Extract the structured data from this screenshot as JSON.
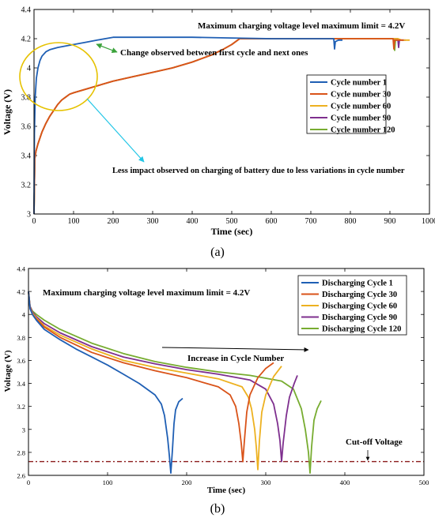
{
  "chart_data": [
    {
      "id": "a",
      "type": "line",
      "panel_label": "(a)",
      "xlabel": "Time (sec)",
      "ylabel": "Voltage (V)",
      "xlim": [
        0,
        1000
      ],
      "ylim": [
        3,
        4.4
      ],
      "xticks": [
        0,
        100,
        200,
        300,
        400,
        500,
        600,
        700,
        800,
        900,
        1000
      ],
      "yticks": [
        3,
        3.2,
        3.4,
        3.6,
        3.8,
        4,
        4.2,
        4.4
      ],
      "grid": false,
      "legend_position": "middle-right",
      "annotations": [
        "Maximum charging voltage level maximum limit = 4.2V",
        "Change observed between first cycle and next ones",
        "Less impact observed on charging of battery due to less variations in cycle number"
      ],
      "series": [
        {
          "name": "Cycle number 1",
          "color": "#1f5fb4",
          "x": [
            0,
            1,
            3,
            6,
            10,
            15,
            20,
            30,
            40,
            60,
            80,
            100,
            130,
            160,
            190,
            200,
            300,
            400,
            500,
            600,
            700,
            750,
            758,
            760,
            762,
            770,
            780
          ],
          "y": [
            3.0,
            3.55,
            3.8,
            3.93,
            4.0,
            4.05,
            4.08,
            4.11,
            4.125,
            4.14,
            4.15,
            4.16,
            4.175,
            4.19,
            4.205,
            4.21,
            4.21,
            4.21,
            4.205,
            4.2,
            4.2,
            4.2,
            4.2,
            4.13,
            4.18,
            4.19,
            4.19
          ]
        },
        {
          "name": "Cycle number 30",
          "color": "#d95319",
          "x": [
            0,
            2,
            5,
            10,
            20,
            30,
            40,
            50,
            60,
            70,
            80,
            90,
            100,
            150,
            200,
            250,
            300,
            350,
            400,
            450,
            480,
            500,
            520,
            600,
            700,
            800,
            900,
            908,
            910,
            912,
            920,
            935
          ],
          "y": [
            3.0,
            3.38,
            3.43,
            3.48,
            3.56,
            3.62,
            3.67,
            3.71,
            3.75,
            3.78,
            3.8,
            3.82,
            3.83,
            3.87,
            3.91,
            3.94,
            3.97,
            4.0,
            4.04,
            4.09,
            4.13,
            4.16,
            4.2,
            4.2,
            4.2,
            4.2,
            4.2,
            4.2,
            4.13,
            4.19,
            4.19,
            4.19
          ]
        },
        {
          "name": "Cycle number 60",
          "color": "#edb120",
          "x": [
            0,
            2,
            5,
            10,
            20,
            30,
            40,
            50,
            60,
            70,
            80,
            90,
            100,
            150,
            200,
            250,
            300,
            350,
            400,
            450,
            480,
            500,
            520,
            600,
            700,
            800,
            900,
            920,
            930,
            940,
            950
          ],
          "y": [
            3.0,
            3.38,
            3.43,
            3.48,
            3.56,
            3.62,
            3.67,
            3.71,
            3.75,
            3.78,
            3.8,
            3.82,
            3.83,
            3.87,
            3.91,
            3.94,
            3.97,
            4.0,
            4.04,
            4.09,
            4.13,
            4.16,
            4.2,
            4.2,
            4.2,
            4.2,
            4.2,
            4.2,
            4.19,
            4.19,
            4.19
          ]
        },
        {
          "name": "Cycle number 90",
          "color": "#7e2f8e",
          "x": [
            0,
            2,
            5,
            10,
            20,
            30,
            40,
            50,
            60,
            70,
            80,
            90,
            100,
            150,
            200,
            250,
            300,
            350,
            400,
            450,
            480,
            500,
            520,
            600,
            700,
            800,
            900,
            920,
            922,
            924,
            930,
            940
          ],
          "y": [
            3.0,
            3.38,
            3.43,
            3.48,
            3.56,
            3.62,
            3.67,
            3.71,
            3.75,
            3.78,
            3.8,
            3.82,
            3.83,
            3.87,
            3.91,
            3.94,
            3.97,
            4.0,
            4.04,
            4.09,
            4.13,
            4.16,
            4.2,
            4.2,
            4.2,
            4.2,
            4.2,
            4.2,
            4.14,
            4.19,
            4.19,
            4.19
          ]
        },
        {
          "name": "Cycle number 120",
          "color": "#77ac30",
          "x": [
            0,
            2,
            5,
            10,
            20,
            30,
            40,
            50,
            60,
            70,
            80,
            90,
            100,
            150,
            200,
            250,
            300,
            350,
            400,
            450,
            480,
            500,
            520,
            600,
            700,
            800,
            900,
            910,
            912,
            914,
            920
          ],
          "y": [
            3.0,
            3.38,
            3.43,
            3.48,
            3.56,
            3.62,
            3.67,
            3.71,
            3.75,
            3.78,
            3.8,
            3.82,
            3.83,
            3.87,
            3.91,
            3.94,
            3.97,
            4.0,
            4.04,
            4.09,
            4.13,
            4.16,
            4.2,
            4.2,
            4.2,
            4.2,
            4.2,
            4.2,
            4.12,
            4.19,
            4.19
          ]
        }
      ]
    },
    {
      "id": "b",
      "type": "line",
      "panel_label": "(b)",
      "xlabel": "Time (sec)",
      "ylabel": "Voltage (V)",
      "xlim": [
        0,
        500
      ],
      "ylim": [
        2.6,
        4.4
      ],
      "xticks": [
        0,
        100,
        200,
        300,
        400,
        500
      ],
      "yticks": [
        2.6,
        2.8,
        3,
        3.2,
        3.4,
        3.6,
        3.8,
        4,
        4.2,
        4.4
      ],
      "grid": false,
      "legend_position": "top-right",
      "annotations": [
        "Maximum charging voltage level maximum limit = 4.2V",
        "Increase in Cycle Number",
        "Cut-off Voltage"
      ],
      "cutoff_voltage": 2.72,
      "series": [
        {
          "name": "Discharging Cycle 1",
          "color": "#1f5fb4",
          "x": [
            0,
            2,
            5,
            10,
            20,
            40,
            60,
            80,
            100,
            120,
            140,
            160,
            168,
            172,
            176,
            178,
            180,
            182,
            184,
            186,
            190,
            195
          ],
          "y": [
            4.2,
            4.05,
            4.0,
            3.95,
            3.87,
            3.78,
            3.7,
            3.63,
            3.56,
            3.48,
            3.4,
            3.3,
            3.22,
            3.12,
            2.92,
            2.78,
            2.62,
            2.82,
            3.05,
            3.17,
            3.24,
            3.27
          ]
        },
        {
          "name": "Discharging Cycle 30",
          "color": "#d95319",
          "x": [
            0,
            2,
            5,
            10,
            20,
            40,
            80,
            120,
            160,
            200,
            240,
            255,
            262,
            266,
            269,
            271,
            273,
            276,
            280,
            290,
            300,
            310
          ],
          "y": [
            4.2,
            4.06,
            4.0,
            3.96,
            3.89,
            3.8,
            3.67,
            3.58,
            3.51,
            3.45,
            3.37,
            3.3,
            3.2,
            3.05,
            2.88,
            2.72,
            2.9,
            3.15,
            3.3,
            3.45,
            3.53,
            3.58
          ]
        },
        {
          "name": "Discharging Cycle 60",
          "color": "#edb120",
          "x": [
            0,
            2,
            5,
            10,
            20,
            40,
            80,
            120,
            160,
            200,
            240,
            270,
            278,
            282,
            286,
            288,
            290,
            292,
            295,
            300,
            310,
            320
          ],
          "y": [
            4.2,
            4.06,
            4.01,
            3.97,
            3.9,
            3.82,
            3.7,
            3.6,
            3.54,
            3.49,
            3.44,
            3.37,
            3.28,
            3.18,
            3.0,
            2.85,
            2.65,
            2.9,
            3.15,
            3.3,
            3.46,
            3.55
          ]
        },
        {
          "name": "Discharging Cycle 90",
          "color": "#7e2f8e",
          "x": [
            0,
            2,
            5,
            10,
            20,
            40,
            80,
            120,
            160,
            200,
            240,
            280,
            300,
            310,
            315,
            318,
            320,
            322,
            326,
            330,
            336,
            340
          ],
          "y": [
            4.2,
            4.07,
            4.02,
            3.98,
            3.92,
            3.84,
            3.72,
            3.63,
            3.57,
            3.52,
            3.48,
            3.43,
            3.35,
            3.22,
            3.05,
            2.9,
            2.72,
            2.88,
            3.12,
            3.28,
            3.4,
            3.47
          ]
        },
        {
          "name": "Discharging Cycle 120",
          "color": "#77ac30",
          "x": [
            0,
            2,
            5,
            10,
            20,
            40,
            80,
            120,
            160,
            200,
            240,
            280,
            320,
            335,
            345,
            350,
            354,
            356,
            358,
            361,
            365,
            370
          ],
          "y": [
            4.2,
            4.07,
            4.03,
            4.0,
            3.95,
            3.87,
            3.75,
            3.66,
            3.59,
            3.54,
            3.5,
            3.47,
            3.42,
            3.35,
            3.18,
            3.0,
            2.8,
            2.62,
            2.85,
            3.08,
            3.18,
            3.25
          ]
        }
      ]
    }
  ]
}
